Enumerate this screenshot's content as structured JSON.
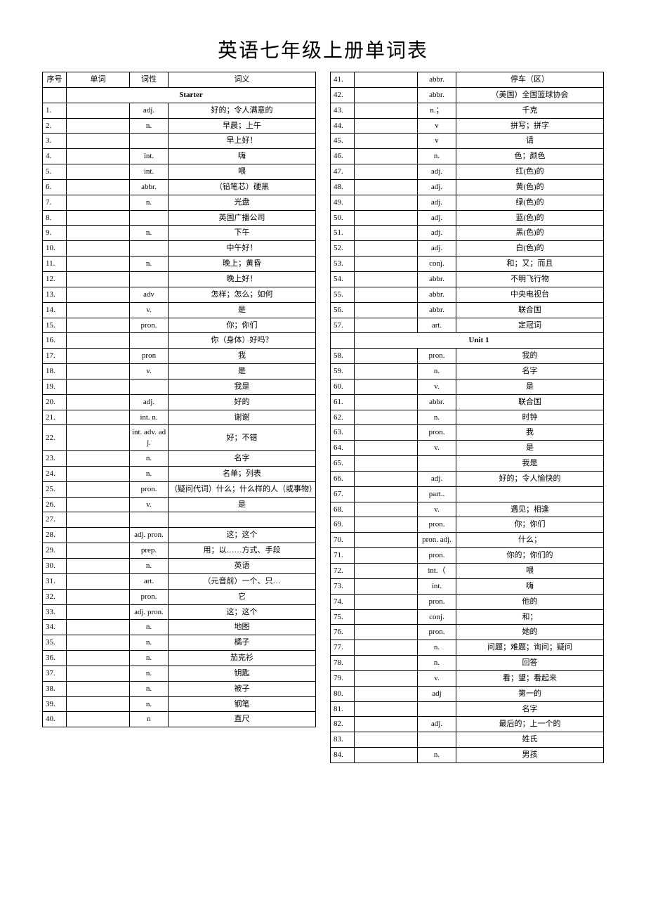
{
  "title": "英语七年级上册单词表",
  "headers": {
    "num": "序号",
    "word": "单词",
    "pos": "词性",
    "def": "词义"
  },
  "sections": {
    "starter": "Starter",
    "unit1": "Unit 1"
  },
  "left_rows": [
    {
      "n": "1.",
      "w": "",
      "p": "adj.",
      "d": "好的；令人满意的"
    },
    {
      "n": "2.",
      "w": "",
      "p": "n.",
      "d": "早晨；上午"
    },
    {
      "n": "3.",
      "w": "",
      "p": "",
      "d": "早上好！"
    },
    {
      "n": "4.",
      "w": "",
      "p": "int.",
      "d": "嗨"
    },
    {
      "n": "5.",
      "w": "",
      "p": "int.",
      "d": "喂"
    },
    {
      "n": "6.",
      "w": "",
      "p": "abbr.",
      "d": "（铅笔芯）硬黑"
    },
    {
      "n": "7.",
      "w": "",
      "p": "n.",
      "d": "光盘"
    },
    {
      "n": "8.",
      "w": "",
      "p": "",
      "d": "英国广播公司"
    },
    {
      "n": "9.",
      "w": "",
      "p": "n.",
      "d": "下午"
    },
    {
      "n": "10.",
      "w": "",
      "p": "",
      "d": "中午好！"
    },
    {
      "n": "11.",
      "w": "",
      "p": "n.",
      "d": "晚上；黄昏"
    },
    {
      "n": "12.",
      "w": "",
      "p": "",
      "d": "晚上好！"
    },
    {
      "n": "13.",
      "w": "",
      "p": "adv",
      "d": "怎样；怎么；如何"
    },
    {
      "n": "14.",
      "w": "",
      "p": "v.",
      "d": "是"
    },
    {
      "n": "15.",
      "w": "",
      "p": "pron.",
      "d": "你；你们"
    },
    {
      "n": "16.",
      "w": "",
      "p": "",
      "d": "你（身体）好吗？"
    },
    {
      "n": "17.",
      "w": "",
      "p": "pron",
      "d": "我"
    },
    {
      "n": "18.",
      "w": "",
      "p": "v.",
      "d": "是"
    },
    {
      "n": "19.",
      "w": "",
      "p": "",
      "d": "我是"
    },
    {
      "n": "20.",
      "w": "",
      "p": "adj.",
      "d": "好的"
    },
    {
      "n": "21.",
      "w": "",
      "p": "int. n.",
      "d": "谢谢"
    },
    {
      "n": "22.",
      "w": "",
      "p": "int. adv. adj.",
      "d": "好；不错"
    },
    {
      "n": "23.",
      "w": "",
      "p": "n.",
      "d": "名字"
    },
    {
      "n": "24.",
      "w": "",
      "p": "n.",
      "d": "名单；列表"
    },
    {
      "n": "25.",
      "w": "",
      "p": "pron.",
      "d": "（疑问代词）什么；什么样的人（或事物）"
    },
    {
      "n": "26.",
      "w": "",
      "p": "v.",
      "d": "是"
    },
    {
      "n": "27.",
      "w": "",
      "p": "",
      "d": ""
    },
    {
      "n": "28.",
      "w": "",
      "p": "adj. pron.",
      "d": "这；这个"
    },
    {
      "n": "29.",
      "w": "",
      "p": "prep.",
      "d": "用；以……方式、手段"
    },
    {
      "n": "30.",
      "w": "",
      "p": "n.",
      "d": "英语"
    },
    {
      "n": "31.",
      "w": "",
      "p": "art.",
      "d": "（元音前）一个、只…"
    },
    {
      "n": "32.",
      "w": "",
      "p": "pron.",
      "d": "它"
    },
    {
      "n": "33.",
      "w": "",
      "p": "adj. pron.",
      "d": "这；这个"
    },
    {
      "n": "34.",
      "w": "",
      "p": "n.",
      "d": "地图"
    },
    {
      "n": "35.",
      "w": "",
      "p": "n.",
      "d": "橘子"
    },
    {
      "n": "36.",
      "w": "",
      "p": "n.",
      "d": "茄克衫"
    },
    {
      "n": "37.",
      "w": "",
      "p": "n.",
      "d": "钥匙"
    },
    {
      "n": "38.",
      "w": "",
      "p": "n.",
      "d": "被子"
    },
    {
      "n": "39.",
      "w": "",
      "p": "n.",
      "d": "钢笔"
    },
    {
      "n": "40.",
      "w": "",
      "p": "n",
      "d": "直尺"
    }
  ],
  "right_rows_a": [
    {
      "n": "41.",
      "w": "",
      "p": "abbr.",
      "d": "停车（区）"
    },
    {
      "n": "42.",
      "w": "",
      "p": "abbr.",
      "d": "（美国）全国篮球协会"
    },
    {
      "n": "43.",
      "w": "",
      "p": "n.；",
      "d": "千克"
    },
    {
      "n": "44.",
      "w": "",
      "p": "v",
      "d": "拼写；拼字"
    },
    {
      "n": "45.",
      "w": "",
      "p": "v",
      "d": "请"
    },
    {
      "n": "46.",
      "w": "",
      "p": "n.",
      "d": "色；颜色"
    },
    {
      "n": "47.",
      "w": "",
      "p": "adj.",
      "d": "红(色)的"
    },
    {
      "n": "48.",
      "w": "",
      "p": "adj.",
      "d": "黄(色)的"
    },
    {
      "n": "49.",
      "w": "",
      "p": "adj.",
      "d": "绿(色)的"
    },
    {
      "n": "50.",
      "w": "",
      "p": "adj.",
      "d": "蓝(色)的"
    },
    {
      "n": "51.",
      "w": "",
      "p": "adj.",
      "d": "黑(色)的"
    },
    {
      "n": "52.",
      "w": "",
      "p": "adj.",
      "d": "白(色)的"
    },
    {
      "n": "53.",
      "w": "",
      "p": "conj.",
      "d": "和；又；而且"
    },
    {
      "n": "54.",
      "w": "",
      "p": "abbr.",
      "d": "不明飞行物"
    },
    {
      "n": "55.",
      "w": "",
      "p": "abbr.",
      "d": "中央电视台"
    },
    {
      "n": "56.",
      "w": "",
      "p": "abbr.",
      "d": "联合国"
    },
    {
      "n": "57.",
      "w": "",
      "p": "art.",
      "d": "定冠词"
    }
  ],
  "right_rows_b": [
    {
      "n": "58.",
      "w": "",
      "p": "pron.",
      "d": "我的"
    },
    {
      "n": "59.",
      "w": "",
      "p": "n.",
      "d": "名字"
    },
    {
      "n": "60.",
      "w": "",
      "p": "v.",
      "d": "是"
    },
    {
      "n": "61.",
      "w": "",
      "p": "abbr.",
      "d": "联合国"
    },
    {
      "n": "62.",
      "w": "",
      "p": "n.",
      "d": "时钟"
    },
    {
      "n": "63.",
      "w": "",
      "p": "pron.",
      "d": "我"
    },
    {
      "n": "64.",
      "w": "",
      "p": "v.",
      "d": "是"
    },
    {
      "n": "65.",
      "w": "",
      "p": "",
      "d": "我是"
    },
    {
      "n": "66.",
      "w": "",
      "p": "adj.",
      "d": "好的；令人愉快的"
    },
    {
      "n": "67.",
      "w": "",
      "p": "part..",
      "d": ""
    },
    {
      "n": "68.",
      "w": "",
      "p": "v.",
      "d": "遇见；相逢"
    },
    {
      "n": "69.",
      "w": "",
      "p": "pron.",
      "d": "你；你们"
    },
    {
      "n": "70.",
      "w": "",
      "p": "pron. adj.",
      "d": "什么；"
    },
    {
      "n": "71.",
      "w": "",
      "p": "pron.",
      "d": "你的；你们的"
    },
    {
      "n": "72.",
      "w": "",
      "p": "int.（",
      "d": "喂"
    },
    {
      "n": "73.",
      "w": "",
      "p": "int.",
      "d": "嗨"
    },
    {
      "n": "74.",
      "w": "",
      "p": "pron.",
      "d": "他的"
    },
    {
      "n": "75.",
      "w": "",
      "p": "conj.",
      "d": "和；"
    },
    {
      "n": "76.",
      "w": "",
      "p": "pron.",
      "d": "她的"
    },
    {
      "n": "77.",
      "w": "",
      "p": "n.",
      "d": "问题；难题；询问；疑问"
    },
    {
      "n": "78.",
      "w": "",
      "p": "n.",
      "d": "回答"
    },
    {
      "n": "79.",
      "w": "",
      "p": "v.",
      "d": "看；望；看起来"
    },
    {
      "n": "80.",
      "w": "",
      "p": "adj",
      "d": "第一的"
    },
    {
      "n": "81.",
      "w": "",
      "p": "",
      "d": "名字"
    },
    {
      "n": "82.",
      "w": "",
      "p": "adj.",
      "d": "最后的；上一个的"
    },
    {
      "n": "83.",
      "w": "",
      "p": "",
      "d": "姓氏"
    },
    {
      "n": "84.",
      "w": "",
      "p": "n.",
      "d": "男孩"
    }
  ],
  "style": {
    "title_fontsize": 28,
    "cell_fontsize": 11,
    "border_color": "#000000",
    "bg_color": "#ffffff",
    "text_color": "#000000"
  }
}
